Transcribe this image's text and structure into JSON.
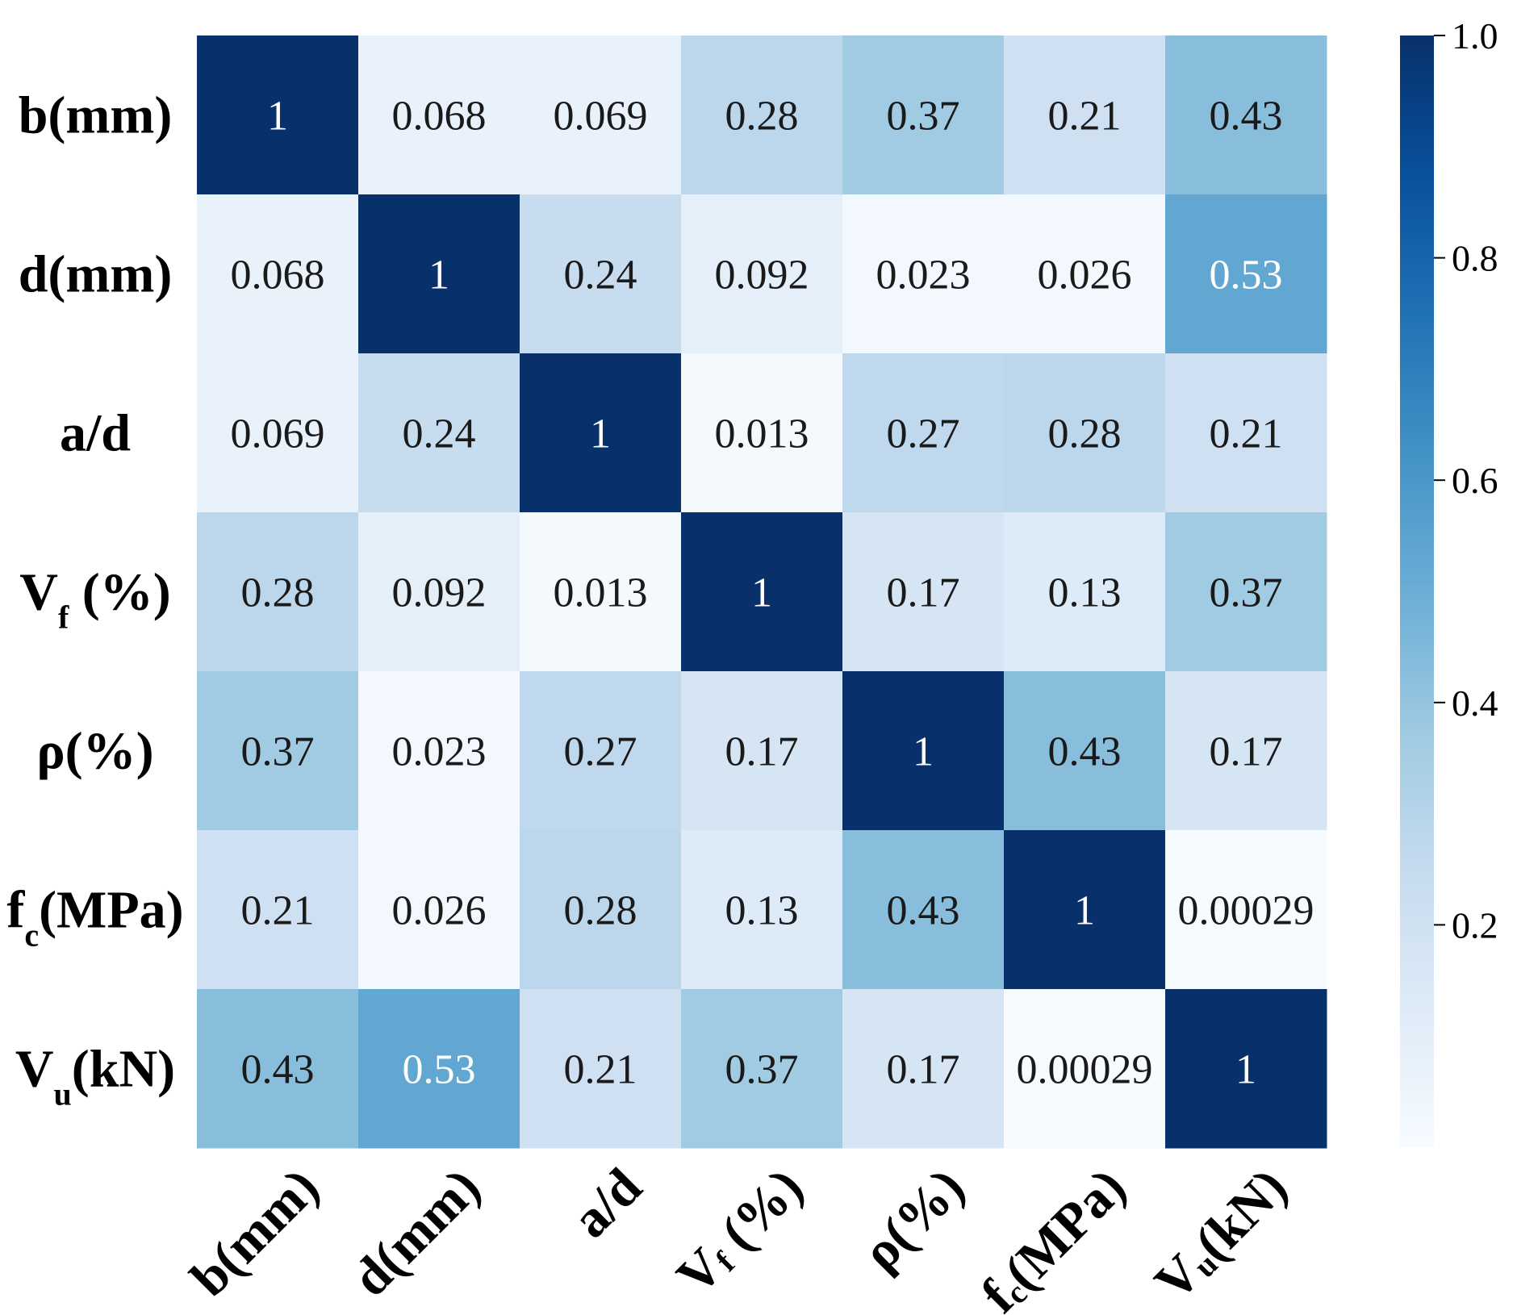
{
  "chart_data": {
    "type": "heatmap",
    "title": "",
    "labels": [
      {
        "id": "b",
        "main": "b(mm)",
        "sub": ""
      },
      {
        "id": "d",
        "main": "d(mm)",
        "sub": ""
      },
      {
        "id": "ad",
        "main": "a/d",
        "sub": ""
      },
      {
        "id": "vf",
        "main": "V",
        "sub": "f",
        "rest": " (%)"
      },
      {
        "id": "rho",
        "main": "ρ(%)",
        "sub": ""
      },
      {
        "id": "fc",
        "main": "f",
        "sub": "c",
        "rest": "(MPa)"
      },
      {
        "id": "vu",
        "main": "V",
        "sub": "u",
        "rest": "(kN)"
      }
    ],
    "values": [
      [
        1,
        0.068,
        0.069,
        0.28,
        0.37,
        0.21,
        0.43
      ],
      [
        0.068,
        1,
        0.24,
        0.092,
        0.023,
        0.026,
        0.53
      ],
      [
        0.069,
        0.24,
        1,
        0.013,
        0.27,
        0.28,
        0.21
      ],
      [
        0.28,
        0.092,
        0.013,
        1,
        0.17,
        0.13,
        0.37
      ],
      [
        0.37,
        0.023,
        0.27,
        0.17,
        1,
        0.43,
        0.17
      ],
      [
        0.21,
        0.026,
        0.28,
        0.13,
        0.43,
        1,
        0.00029
      ],
      [
        0.43,
        0.53,
        0.21,
        0.37,
        0.17,
        0.00029,
        1
      ]
    ],
    "value_text": [
      [
        "1",
        "0.068",
        "0.069",
        "0.28",
        "0.37",
        "0.21",
        "0.43"
      ],
      [
        "0.068",
        "1",
        "0.24",
        "0.092",
        "0.023",
        "0.026",
        "0.53"
      ],
      [
        "0.069",
        "0.24",
        "1",
        "0.013",
        "0.27",
        "0.28",
        "0.21"
      ],
      [
        "0.28",
        "0.092",
        "0.013",
        "1",
        "0.17",
        "0.13",
        "0.37"
      ],
      [
        "0.37",
        "0.023",
        "0.27",
        "0.17",
        "1",
        "0.43",
        "0.17"
      ],
      [
        "0.21",
        "0.026",
        "0.28",
        "0.13",
        "0.43",
        "1",
        "0.00029"
      ],
      [
        "0.43",
        "0.53",
        "0.21",
        "0.37",
        "0.17",
        "0.00029",
        "1"
      ]
    ],
    "colormap": "Blues",
    "vmin": 0,
    "vmax": 1,
    "colorbar": {
      "ticks": [
        0.2,
        0.4,
        0.6,
        0.8,
        1.0
      ],
      "tick_labels": [
        "0.2",
        "0.4",
        "0.6",
        "0.8",
        "1.0"
      ]
    },
    "colors": {
      "stops": [
        "#f7fbff",
        "#deebf7",
        "#c6dbef",
        "#9ecae1",
        "#6baed6",
        "#4292c6",
        "#2171b5",
        "#08519c",
        "#08306b"
      ],
      "light_text": "#ffffff",
      "dark_text": "#1a1a1a"
    }
  }
}
